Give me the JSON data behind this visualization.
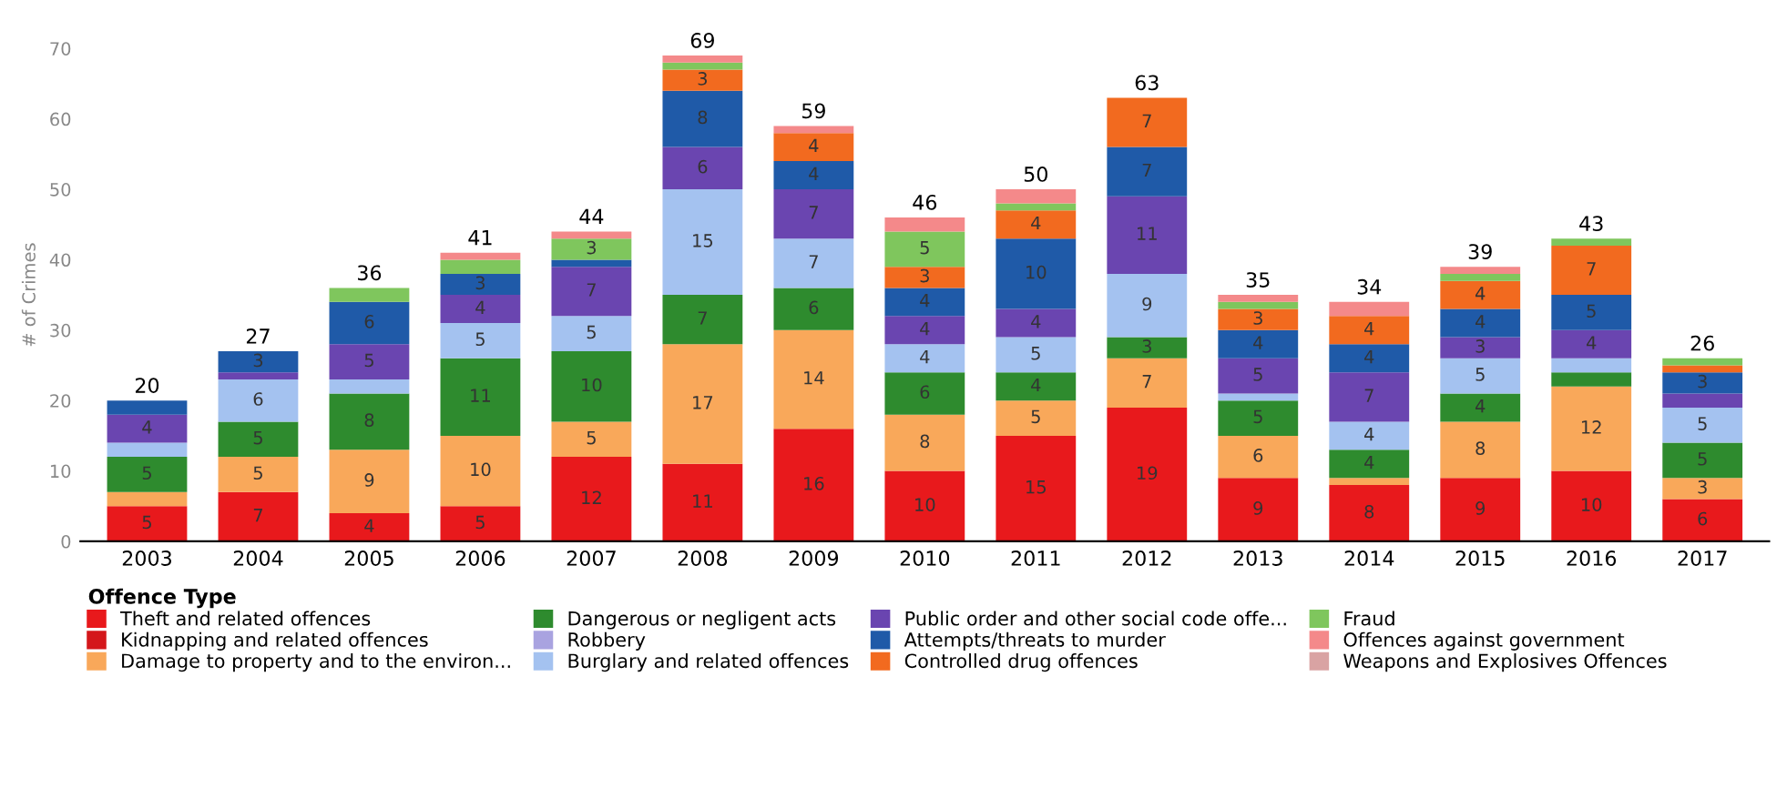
{
  "chart_data": {
    "type": "bar",
    "stacked": true,
    "ylabel": "# of Crimes",
    "legend_title": "Offence Type",
    "legend": "bottom",
    "grid": false,
    "categories": [
      "2003",
      "2004",
      "2005",
      "2006",
      "2007",
      "2008",
      "2009",
      "2010",
      "2011",
      "2012",
      "2013",
      "2014",
      "2015",
      "2016",
      "2017"
    ],
    "ylim": [
      0,
      70
    ],
    "yticks": [
      0,
      10,
      20,
      30,
      40,
      50,
      60,
      70
    ],
    "totals": [
      "20",
      "27",
      "36",
      "41",
      "44",
      "69",
      "59",
      "46",
      "50",
      "63",
      "35",
      "34",
      "39",
      "43",
      "26"
    ],
    "series": [
      {
        "name": "Theft and related offences",
        "color": "#e8191c",
        "values": [
          5,
          7,
          4,
          5,
          12,
          11,
          16,
          10,
          15,
          19,
          9,
          8,
          9,
          10,
          6
        ],
        "value_labels": [
          "5",
          "7",
          "4",
          "5",
          "12",
          "11",
          "16",
          "10",
          "15",
          "19",
          "9",
          "8",
          "9",
          "10",
          "6"
        ]
      },
      {
        "name": "Kidnapping and related offences",
        "color": "#d4171b",
        "values": [
          0,
          0,
          0,
          0,
          0,
          0,
          0,
          0,
          0,
          0,
          0,
          0,
          0,
          0,
          0
        ]
      },
      {
        "name": "Damage to property and to the environ...",
        "color": "#f9a85a",
        "values": [
          2,
          5,
          9,
          10,
          5,
          17,
          14,
          8,
          5,
          7,
          6,
          1,
          8,
          12,
          3
        ],
        "value_labels": [
          null,
          "5",
          "9",
          "10",
          "5",
          "17",
          "14",
          "8",
          "5",
          "7",
          "6",
          null,
          "8",
          "12",
          "3"
        ]
      },
      {
        "name": "Dangerous or negligent acts",
        "color": "#2e8b2e",
        "values": [
          5,
          5,
          8,
          11,
          10,
          7,
          6,
          6,
          4,
          3,
          5,
          4,
          4,
          2,
          5
        ],
        "value_labels": [
          "5",
          "5",
          "8",
          "11",
          "10",
          "7",
          "6",
          "6",
          "4",
          "3",
          "5",
          "4",
          "4",
          null,
          "5"
        ]
      },
      {
        "name": "Robbery",
        "color": "#a9a3e0",
        "values": [
          0,
          0,
          0,
          0,
          0,
          0,
          0,
          0,
          0,
          0,
          0,
          0,
          0,
          0,
          0
        ]
      },
      {
        "name": "Burglary and related offences",
        "color": "#a4c2f0",
        "values": [
          2,
          6,
          2,
          5,
          5,
          15,
          7,
          4,
          5,
          9,
          1,
          4,
          5,
          2,
          5
        ],
        "value_labels": [
          null,
          "6",
          null,
          "5",
          "5",
          "15",
          "7",
          "4",
          "5",
          "9",
          null,
          "4",
          "5",
          null,
          "5"
        ]
      },
      {
        "name": "Public order and other social code offe...",
        "color": "#6a45b0",
        "values": [
          4,
          1,
          5,
          4,
          7,
          6,
          7,
          4,
          4,
          11,
          5,
          7,
          3,
          4,
          2
        ],
        "value_labels": [
          "4",
          null,
          "5",
          "4",
          "7",
          "6",
          "7",
          "4",
          "4",
          "11",
          "5",
          "7",
          "3",
          "4",
          null
        ]
      },
      {
        "name": "Attempts/threats to murder",
        "color": "#1f5aa8",
        "values": [
          2,
          3,
          6,
          3,
          1,
          8,
          4,
          4,
          10,
          7,
          4,
          4,
          4,
          5,
          3
        ],
        "value_labels": [
          null,
          "3",
          "6",
          "3",
          null,
          "8",
          "4",
          "4",
          "10",
          "7",
          "4",
          "4",
          "4",
          "5",
          "3"
        ]
      },
      {
        "name": "Controlled drug offences",
        "color": "#f26a1f",
        "values": [
          0,
          0,
          0,
          0,
          0,
          3,
          4,
          3,
          4,
          7,
          3,
          4,
          4,
          7,
          1
        ],
        "value_labels": [
          null,
          null,
          null,
          null,
          null,
          "3",
          "4",
          "3",
          "4",
          "7",
          "3",
          "4",
          "4",
          "7",
          null
        ]
      },
      {
        "name": "Fraud",
        "color": "#7fc65d",
        "values": [
          0,
          0,
          2,
          2,
          3,
          1,
          0,
          5,
          1,
          0,
          1,
          0,
          1,
          1,
          1
        ],
        "value_labels": [
          null,
          null,
          null,
          null,
          "3",
          null,
          null,
          "5",
          null,
          null,
          null,
          null,
          null,
          null,
          null
        ]
      },
      {
        "name": "Offences against government",
        "color": "#f4898a",
        "values": [
          0,
          0,
          0,
          1,
          1,
          1,
          1,
          2,
          2,
          0,
          1,
          2,
          1,
          0,
          0
        ]
      },
      {
        "name": "Weapons and Explosives Offences",
        "color": "#d9a3a3",
        "values": [
          0,
          0,
          0,
          0,
          0,
          0,
          0,
          0,
          0,
          0,
          0,
          0,
          0,
          0,
          0
        ]
      }
    ]
  }
}
